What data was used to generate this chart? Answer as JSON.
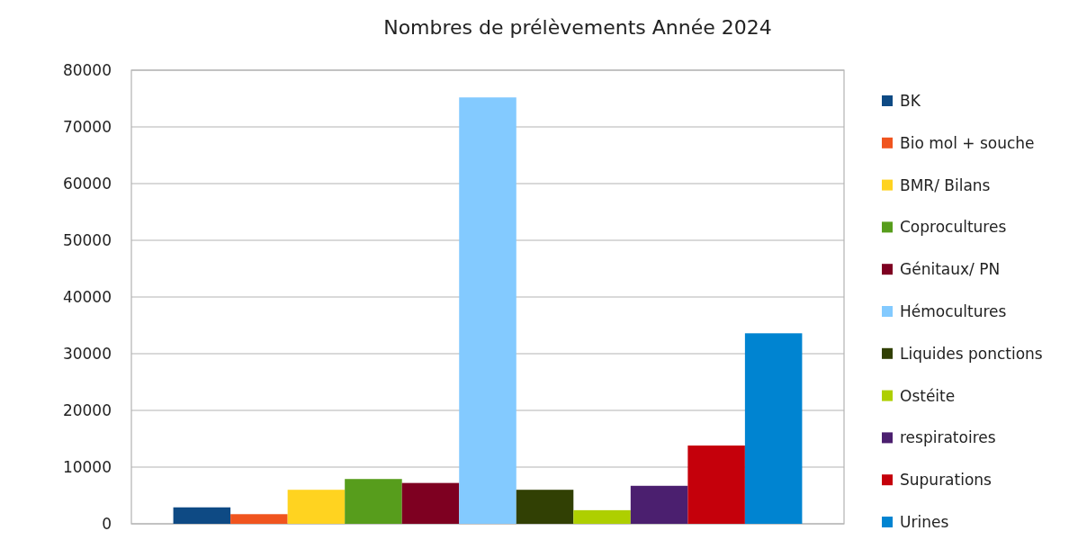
{
  "chart_data": {
    "type": "bar",
    "title": "Nombres de prélèvements Année 2024",
    "categories": [
      null
    ],
    "series": [
      {
        "name": "BK",
        "color": "#0e4a84",
        "values": [
          2900
        ]
      },
      {
        "name": "Bio mol + souche",
        "color": "#f0541e",
        "values": [
          1700
        ]
      },
      {
        "name": "BMR/ Bilans",
        "color": "#ffd320",
        "values": [
          6000
        ]
      },
      {
        "name": "Coprocultures",
        "color": "#579d1c",
        "values": [
          7900
        ]
      },
      {
        "name": "Génitaux/ PN",
        "color": "#7e0021",
        "values": [
          7200
        ]
      },
      {
        "name": "Hémocultures",
        "color": "#83caff",
        "values": [
          75200
        ]
      },
      {
        "name": "Liquides ponctions",
        "color": "#314004",
        "values": [
          6000
        ]
      },
      {
        "name": "Ostéite",
        "color": "#aecf00",
        "values": [
          2400
        ]
      },
      {
        "name": "respiratoires",
        "color": "#4b1f6f",
        "values": [
          6700
        ]
      },
      {
        "name": "Supurations",
        "color": "#c5000b",
        "values": [
          13800
        ]
      },
      {
        "name": "Urines",
        "color": "#0084d1",
        "values": [
          33600
        ]
      }
    ],
    "ylim": [
      0,
      80000
    ],
    "yticks": [
      0,
      10000,
      20000,
      30000,
      40000,
      50000,
      60000,
      70000,
      80000
    ],
    "grid": "y",
    "legend": "right"
  }
}
